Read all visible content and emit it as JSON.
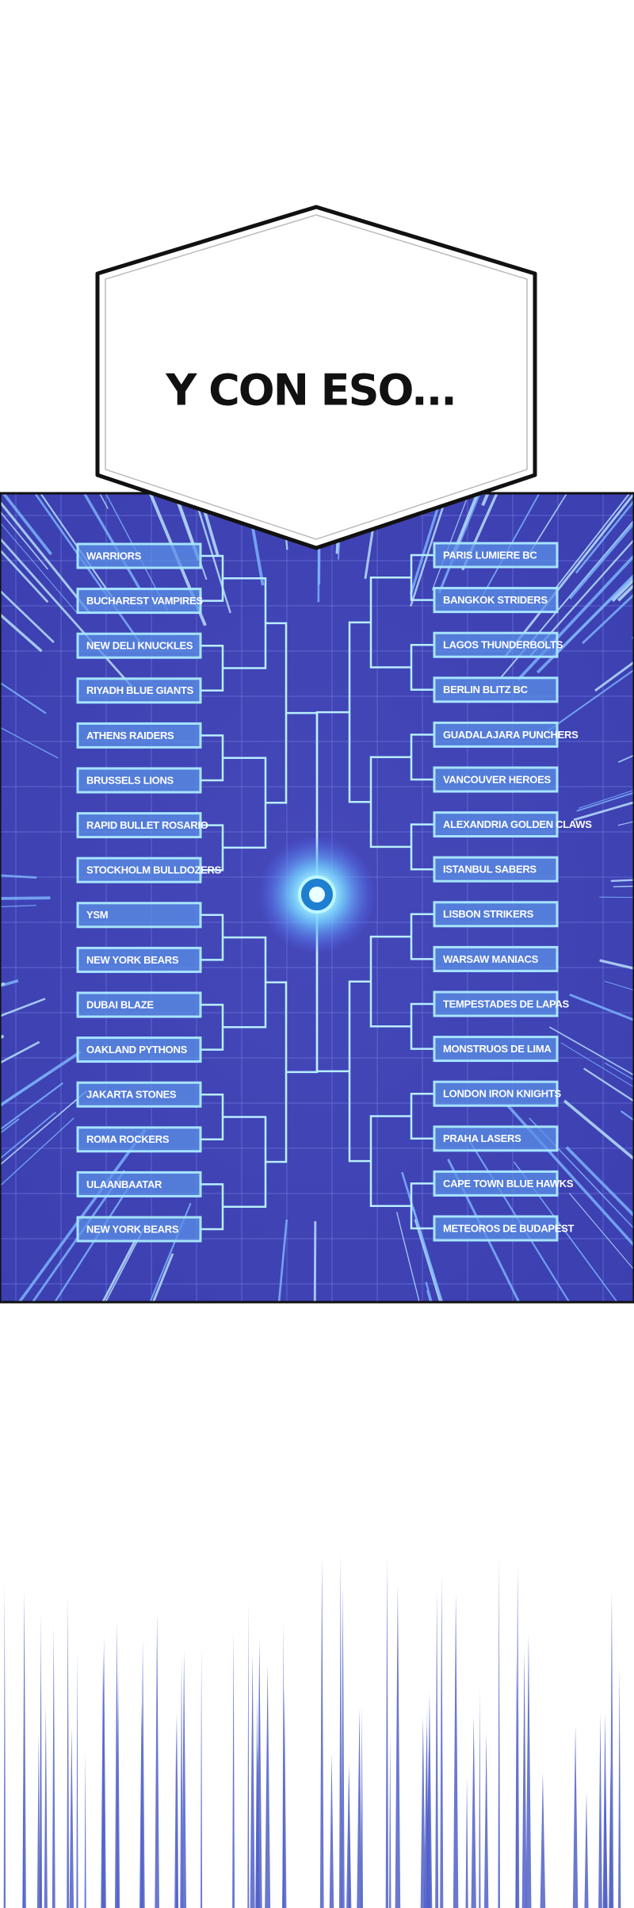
{
  "caption": "Y CON ESO...",
  "bracket": {
    "left": [
      "WARRIORS",
      "BUCHAREST VAMPIRES",
      "NEW DELI KNUCKLES",
      "RIYADH BLUE GIANTS",
      "ATHENS RAIDERS",
      "BRUSSELS LIONS",
      "RAPID BULLET ROSARIO",
      "STOCKHOLM BULLDOZERS",
      "YSM",
      "NEW YORK BEARS",
      "DUBAI BLAZE",
      "OAKLAND PYTHONS",
      "JAKARTA STONES",
      "ROMA ROCKERS",
      "ULAANBAATAR",
      "NEW YORK BEARS"
    ],
    "right": [
      "PARIS LUMIERE BC",
      "BANGKOK STRIDERS",
      "LAGOS THUNDERBOLTS",
      "BERLIN BLITZ BC",
      "GUADALAJARA PUNCHERS",
      "VANCOUVER HEROES",
      "ALEXANDRIA GOLDEN CLAWS",
      "ISTANBUL SABERS",
      "LISBON STRIKERS",
      "WARSAW MANIACS",
      "TEMPESTADES DE LAPAS",
      "MONSTRUOS DE LIMA",
      "LONDON IRON KNIGHTS",
      "PRAHA LASERS",
      "CAPE TOWN BLUE HAWKS",
      "METEOROS DE BUDAPEST"
    ]
  }
}
